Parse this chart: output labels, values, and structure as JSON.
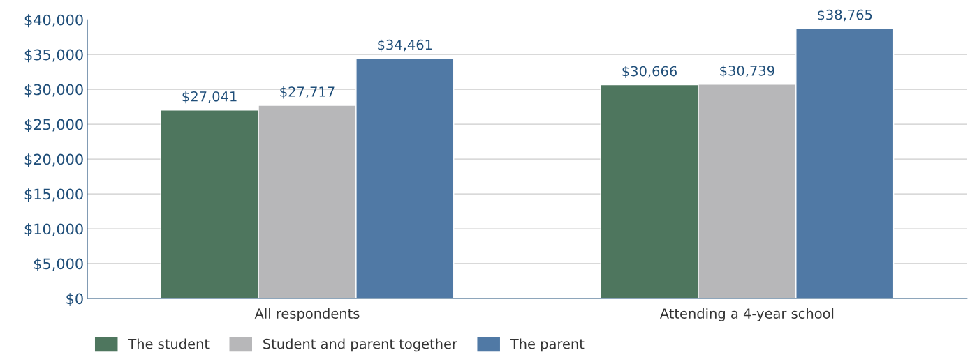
{
  "chart_data": {
    "type": "bar",
    "categories": [
      "All respondents",
      "Attending a 4-year school"
    ],
    "series": [
      {
        "name": "The student",
        "color": "#4e765e",
        "values": [
          27041,
          30666
        ],
        "value_labels": [
          "$27,041",
          "$30,666"
        ]
      },
      {
        "name": "Student and parent together",
        "color": "#b7b7b9",
        "values": [
          27717,
          30739
        ],
        "value_labels": [
          "$27,717",
          "$30,739"
        ]
      },
      {
        "name": "The parent",
        "color": "#5079a5",
        "values": [
          34461,
          38765
        ],
        "value_labels": [
          "$34,461",
          "$38,765"
        ]
      }
    ],
    "ylim": [
      0,
      40000
    ],
    "yticks": [
      {
        "value": 0,
        "label": "$0"
      },
      {
        "value": 5000,
        "label": "$5,000"
      },
      {
        "value": 10000,
        "label": "$10,000"
      },
      {
        "value": 15000,
        "label": "$15,000"
      },
      {
        "value": 20000,
        "label": "$20,000"
      },
      {
        "value": 25000,
        "label": "$25,000"
      },
      {
        "value": 30000,
        "label": "$30,000"
      },
      {
        "value": 35000,
        "label": "$35,000"
      },
      {
        "value": 40000,
        "label": "$40,000"
      }
    ],
    "grid": "y",
    "legend": "bottom left"
  }
}
